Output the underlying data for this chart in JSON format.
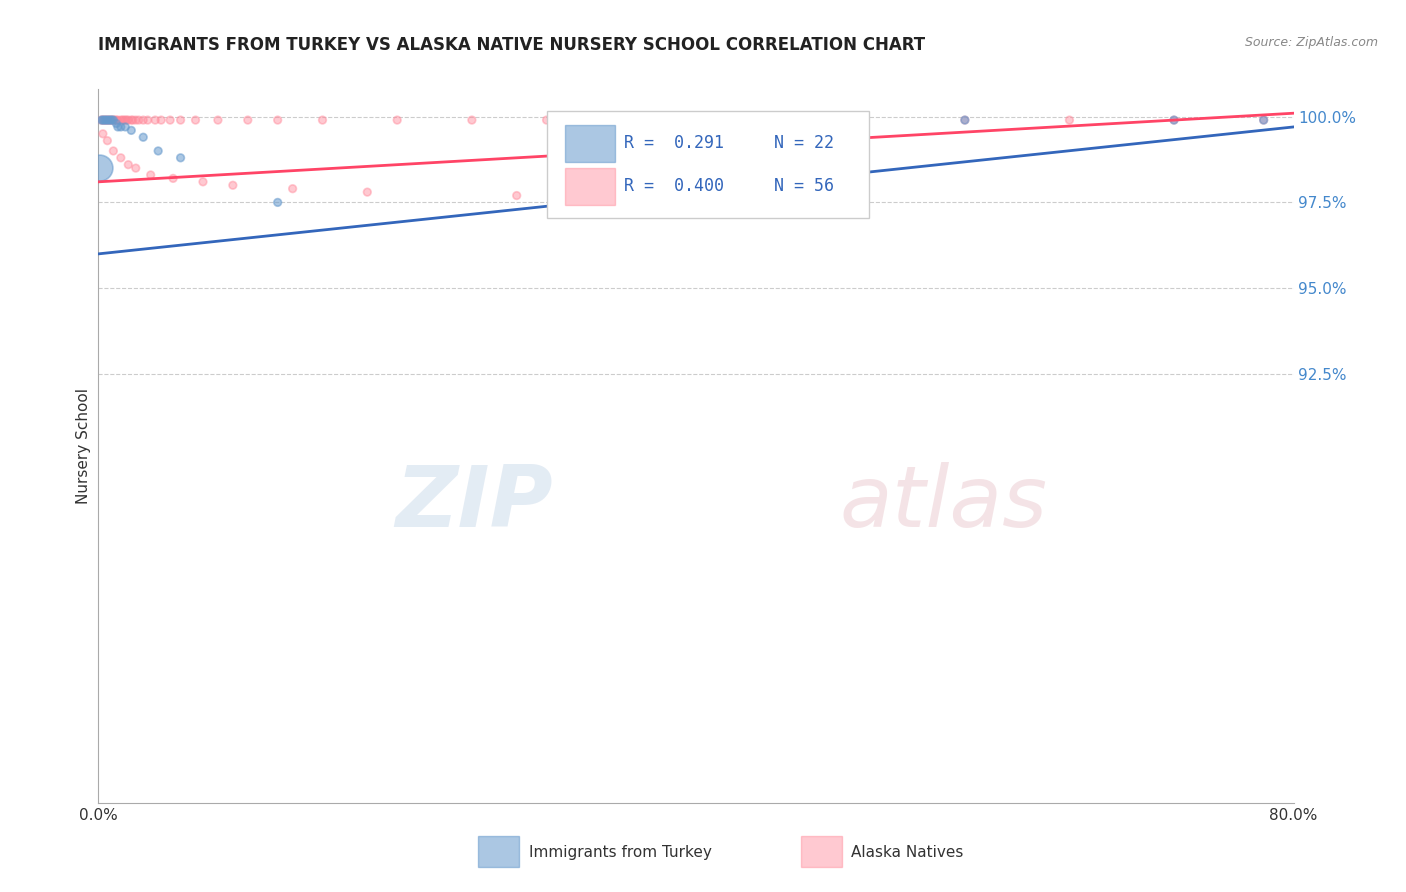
{
  "title": "IMMIGRANTS FROM TURKEY VS ALASKA NATIVE NURSERY SCHOOL CORRELATION CHART",
  "source": "Source: ZipAtlas.com",
  "ylabel": "Nursery School",
  "xlim": [
    0.0,
    0.8
  ],
  "ylim": [
    0.8,
    1.008
  ],
  "ytick_positions": [
    0.925,
    0.95,
    0.975,
    1.0
  ],
  "ytick_labels": [
    "92.5%",
    "95.0%",
    "97.5%",
    "100.0%"
  ],
  "xtick_positions": [
    0.0,
    0.8
  ],
  "xtick_labels": [
    "0.0%",
    "80.0%"
  ],
  "legend_blue_r": "R =  0.291",
  "legend_blue_n": "N = 22",
  "legend_pink_r": "R =  0.400",
  "legend_pink_n": "N = 56",
  "blue_color": "#6699CC",
  "pink_color": "#FF8899",
  "blue_line_color": "#3366BB",
  "pink_line_color": "#FF4466",
  "grid_color": "#CCCCCC",
  "background_color": "#FFFFFF",
  "title_fontsize": 12,
  "blue_trend_x": [
    0.0,
    0.8
  ],
  "blue_trend_y": [
    0.96,
    0.997
  ],
  "pink_trend_x": [
    0.0,
    0.8
  ],
  "pink_trend_y": [
    0.981,
    1.001
  ],
  "blue_x": [
    0.002,
    0.003,
    0.004,
    0.005,
    0.006,
    0.007,
    0.008,
    0.009,
    0.01,
    0.012,
    0.013,
    0.015,
    0.018,
    0.022,
    0.03,
    0.04,
    0.055,
    0.12,
    0.58,
    0.72,
    0.78,
    0.001
  ],
  "blue_y": [
    0.999,
    0.999,
    0.999,
    0.999,
    0.999,
    0.999,
    0.999,
    0.999,
    0.999,
    0.998,
    0.997,
    0.997,
    0.997,
    0.996,
    0.994,
    0.99,
    0.988,
    0.975,
    0.999,
    0.999,
    0.999,
    0.985
  ],
  "blue_size": [
    30,
    30,
    30,
    30,
    30,
    30,
    30,
    30,
    30,
    30,
    30,
    30,
    30,
    30,
    30,
    30,
    30,
    30,
    30,
    30,
    30,
    350
  ],
  "pink_x": [
    0.002,
    0.003,
    0.004,
    0.005,
    0.006,
    0.007,
    0.008,
    0.009,
    0.01,
    0.011,
    0.012,
    0.013,
    0.015,
    0.016,
    0.017,
    0.018,
    0.019,
    0.02,
    0.022,
    0.023,
    0.025,
    0.027,
    0.03,
    0.033,
    0.038,
    0.042,
    0.048,
    0.055,
    0.065,
    0.08,
    0.1,
    0.12,
    0.15,
    0.2,
    0.25,
    0.3,
    0.35,
    0.4,
    0.5,
    0.58,
    0.65,
    0.72,
    0.78,
    0.003,
    0.006,
    0.01,
    0.015,
    0.02,
    0.025,
    0.035,
    0.05,
    0.07,
    0.09,
    0.13,
    0.18,
    0.28
  ],
  "pink_y": [
    0.999,
    0.999,
    0.999,
    0.999,
    0.999,
    0.999,
    0.999,
    0.999,
    0.999,
    0.999,
    0.999,
    0.999,
    0.999,
    0.999,
    0.999,
    0.999,
    0.999,
    0.999,
    0.999,
    0.999,
    0.999,
    0.999,
    0.999,
    0.999,
    0.999,
    0.999,
    0.999,
    0.999,
    0.999,
    0.999,
    0.999,
    0.999,
    0.999,
    0.999,
    0.999,
    0.999,
    0.999,
    0.999,
    0.999,
    0.999,
    0.999,
    0.999,
    0.999,
    0.995,
    0.993,
    0.99,
    0.988,
    0.986,
    0.985,
    0.983,
    0.982,
    0.981,
    0.98,
    0.979,
    0.978,
    0.977
  ],
  "pink_size": [
    30,
    30,
    30,
    30,
    30,
    30,
    30,
    30,
    30,
    30,
    30,
    30,
    30,
    30,
    30,
    30,
    30,
    30,
    30,
    30,
    30,
    30,
    30,
    30,
    30,
    30,
    30,
    30,
    30,
    30,
    30,
    30,
    30,
    30,
    30,
    30,
    30,
    30,
    30,
    30,
    30,
    30,
    30,
    30,
    30,
    30,
    30,
    30,
    30,
    30,
    30,
    30,
    30,
    30,
    30,
    30
  ]
}
